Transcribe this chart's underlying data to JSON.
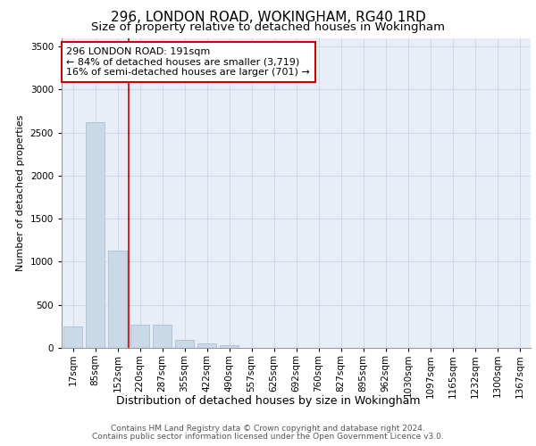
{
  "title1": "296, LONDON ROAD, WOKINGHAM, RG40 1RD",
  "title2": "Size of property relative to detached houses in Wokingham",
  "xlabel": "Distribution of detached houses by size in Wokingham",
  "ylabel": "Number of detached properties",
  "footer1": "Contains HM Land Registry data © Crown copyright and database right 2024.",
  "footer2": "Contains public sector information licensed under the Open Government Licence v3.0.",
  "bar_labels": [
    "17sqm",
    "85sqm",
    "152sqm",
    "220sqm",
    "287sqm",
    "355sqm",
    "422sqm",
    "490sqm",
    "557sqm",
    "625sqm",
    "692sqm",
    "760sqm",
    "827sqm",
    "895sqm",
    "962sqm",
    "1030sqm",
    "1097sqm",
    "1165sqm",
    "1232sqm",
    "1300sqm",
    "1367sqm"
  ],
  "bar_values": [
    250,
    2620,
    1130,
    265,
    265,
    90,
    55,
    30,
    0,
    0,
    0,
    0,
    0,
    0,
    0,
    0,
    0,
    0,
    0,
    0,
    0
  ],
  "bar_color": "#c9d9e8",
  "bar_edgecolor": "#a0b8cc",
  "grid_color": "#d0d8e8",
  "background_color": "#e8eef8",
  "vline_position": 2.5,
  "vline_color": "#cc0000",
  "annotation_text": "296 LONDON ROAD: 191sqm\n← 84% of detached houses are smaller (3,719)\n16% of semi-detached houses are larger (701) →",
  "annotation_box_color": "white",
  "annotation_box_edgecolor": "#cc0000",
  "ylim": [
    0,
    3600
  ],
  "yticks": [
    0,
    500,
    1000,
    1500,
    2000,
    2500,
    3000,
    3500
  ],
  "title1_fontsize": 11,
  "title2_fontsize": 9.5,
  "annotation_fontsize": 8,
  "ylabel_fontsize": 8,
  "xlabel_fontsize": 9,
  "footer_fontsize": 6.5,
  "tick_fontsize": 7.5
}
